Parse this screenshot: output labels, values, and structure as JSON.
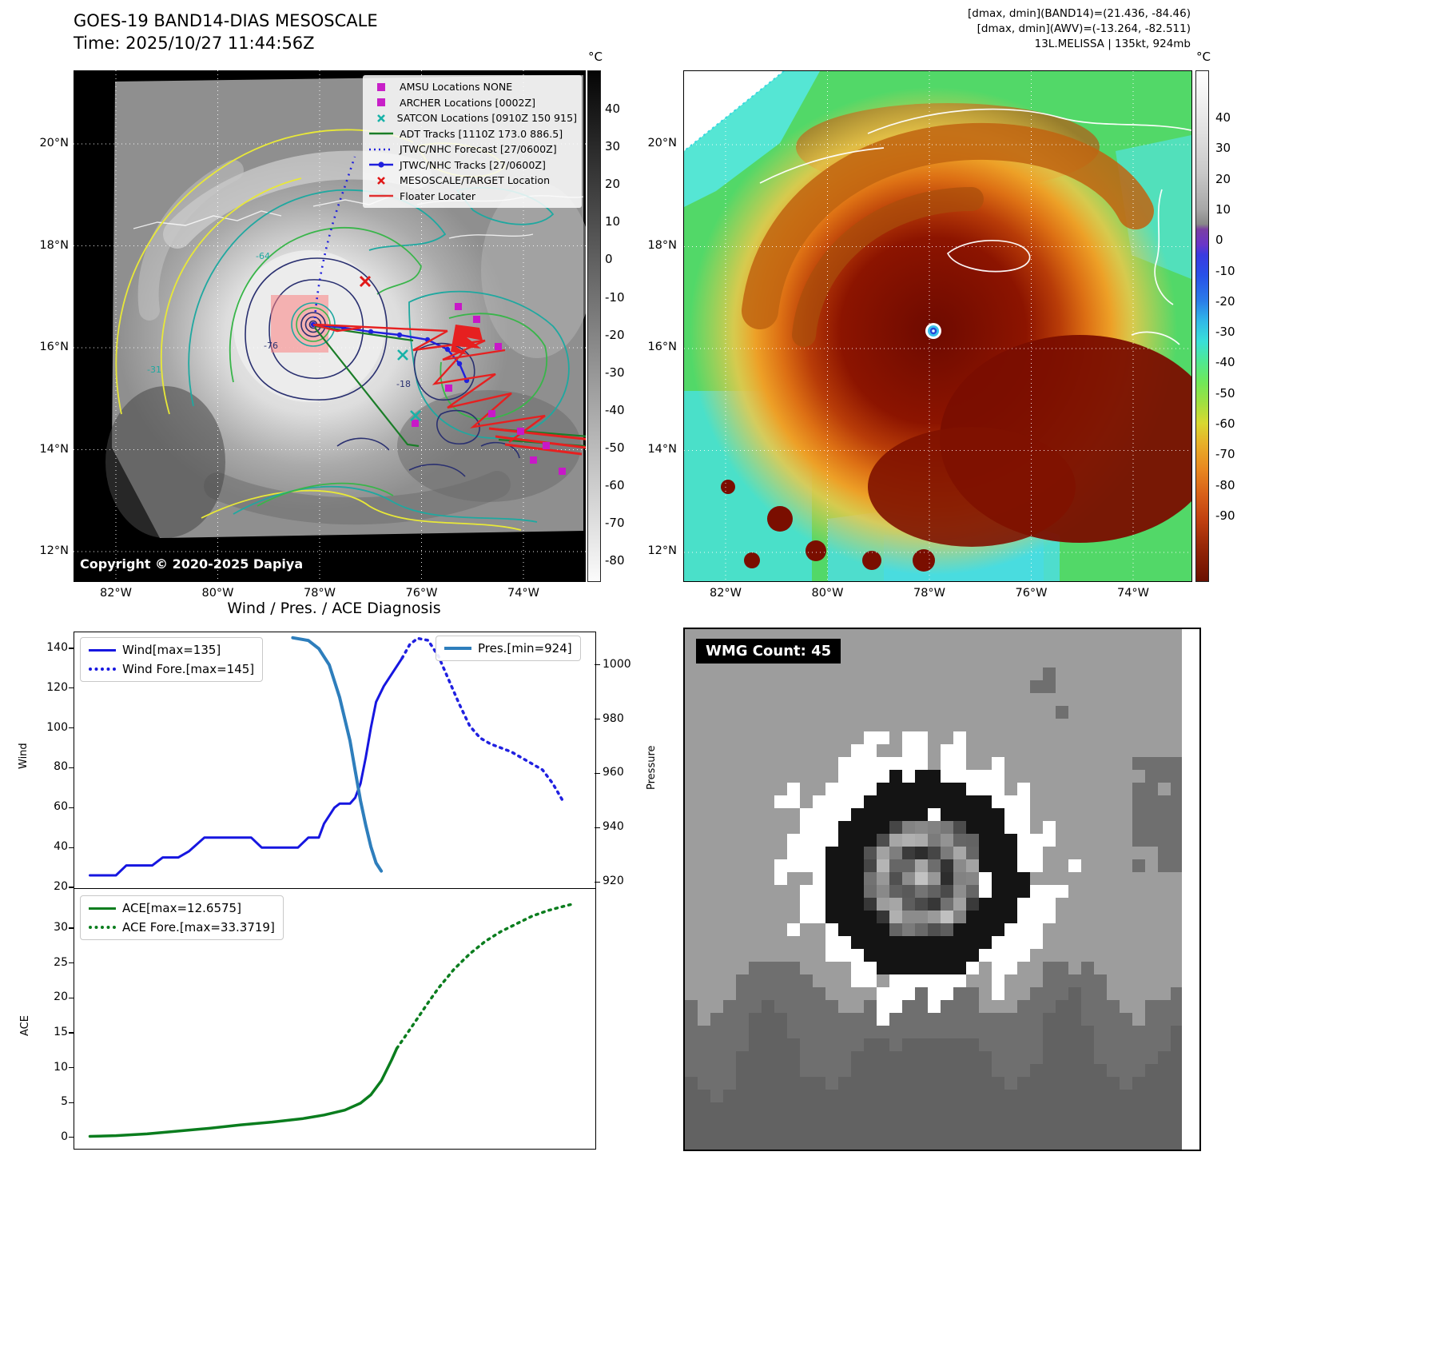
{
  "band14": {
    "title": "GOES-19 BAND14-DIAS MESOSCALE",
    "time_line": "Time: 2025/10/27 11:44:56Z",
    "copyright": "Copyright © 2020-2025 Dapiya",
    "colorbar": {
      "unit": "°C",
      "ticks": [
        "40",
        "30",
        "20",
        "10",
        "0",
        "-10",
        "-20",
        "-30",
        "-40",
        "-50",
        "-60",
        "-70",
        "-80"
      ]
    },
    "lat_ticks": [
      "20°N",
      "18°N",
      "16°N",
      "14°N",
      "12°N"
    ],
    "lon_ticks": [
      "82°W",
      "80°W",
      "78°W",
      "76°W",
      "74°W"
    ],
    "contour_labels": [
      "-31",
      "-64",
      "-76",
      "-18"
    ],
    "legend": [
      {
        "label": "AMSU Locations NONE",
        "marker": "square",
        "color": "#c820c8"
      },
      {
        "label": "ARCHER Locations [0002Z]",
        "marker": "square",
        "color": "#c820c8"
      },
      {
        "label": "SATCON Locations [0910Z 150 915]",
        "marker": "x",
        "color": "#18b2a8"
      },
      {
        "label": "ADT Tracks [1110Z 173.0 886.5]",
        "marker": "line",
        "color": "#1a7d28"
      },
      {
        "label": "JTWC/NHC Forecast [27/0600Z]",
        "marker": "dotted",
        "color": "#2020dd"
      },
      {
        "label": "JTWC/NHC Tracks [27/0600Z]",
        "marker": "line-dot",
        "color": "#2020dd"
      },
      {
        "label": "MESOSCALE/TARGET Location",
        "marker": "x",
        "color": "#e01818"
      },
      {
        "label": "Floater Locater",
        "marker": "line",
        "color": "#e03030"
      }
    ]
  },
  "awv": {
    "header_lines": [
      "[dmax, dmin](BAND14)=(21.436, -84.46)",
      "[dmax, dmin](AWV)=(-13.264, -82.511)",
      "13L.MELISSA | 135kt, 924mb"
    ],
    "colorbar": {
      "unit": "°C",
      "ticks": [
        "40",
        "30",
        "20",
        "10",
        "0",
        "-10",
        "-20",
        "-30",
        "-40",
        "-50",
        "-60",
        "-70",
        "-80",
        "-90"
      ]
    },
    "lat_ticks": [
      "20°N",
      "18°N",
      "16°N",
      "14°N",
      "12°N"
    ],
    "lon_ticks": [
      "82°W",
      "80°W",
      "78°W",
      "76°W",
      "74°W"
    ]
  },
  "diagnosis_title": "Wind / Pres. / ACE Diagnosis",
  "wmg_label": "WMG Count: 45",
  "chart_data": [
    {
      "type": "line",
      "title": "Wind / Pres. / ACE Diagnosis",
      "xlim": [
        0,
        100
      ],
      "grid": false,
      "legend_position": "upper-left and upper-right",
      "left_axis": {
        "label": "Wind",
        "ticks": [
          20,
          40,
          60,
          80,
          100,
          120,
          140
        ],
        "lim": [
          20,
          148
        ]
      },
      "right_axis": {
        "label": "Pressure",
        "ticks": [
          920,
          940,
          960,
          980,
          1000
        ],
        "lim": [
          918,
          1012
        ]
      },
      "series": [
        {
          "name": "Wind[max=135]",
          "axis": "left",
          "style": "solid",
          "color": "#1616e0",
          "width": 3,
          "x": [
            3,
            8,
            10,
            15,
            17,
            20,
            22,
            25,
            27,
            34,
            36,
            43,
            45,
            47,
            48,
            50,
            51,
            53,
            54,
            55,
            56,
            57,
            58,
            59.5,
            61,
            63
          ],
          "y": [
            26,
            26,
            31,
            31,
            35,
            35,
            38,
            45,
            45,
            45,
            40,
            40,
            45,
            45,
            52,
            60,
            62,
            62,
            65,
            72,
            85,
            100,
            113,
            121,
            127,
            135
          ]
        },
        {
          "name": "Wind Fore.[max=145]",
          "axis": "left",
          "style": "dotted",
          "color": "#2020e0",
          "width": 3.5,
          "x": [
            63,
            64.5,
            66,
            68,
            70,
            72,
            74,
            76,
            78,
            80,
            82,
            84,
            86,
            88,
            90,
            92,
            94
          ],
          "y": [
            135,
            142,
            145,
            144,
            136,
            124,
            112,
            101,
            95,
            92,
            90,
            88,
            85,
            82,
            79,
            72,
            63
          ]
        },
        {
          "name": "Pres.[min=924]",
          "axis": "right",
          "style": "solid",
          "color": "#2e7ebc",
          "width": 4,
          "x": [
            42,
            45,
            47,
            49,
            51,
            53,
            54,
            55,
            56,
            57,
            58,
            59
          ],
          "y": [
            1010,
            1009,
            1006,
            1000,
            988,
            972,
            961,
            950,
            941,
            933,
            927,
            924
          ]
        }
      ]
    },
    {
      "type": "line",
      "xlim": [
        0,
        100
      ],
      "grid": false,
      "legend_position": "upper-left",
      "left_axis": {
        "label": "ACE",
        "ticks": [
          0,
          5,
          10,
          15,
          20,
          25,
          30
        ],
        "lim": [
          -1.5,
          35.5
        ]
      },
      "series": [
        {
          "name": "ACE[max=12.6575]",
          "style": "solid",
          "color": "#0a7d1e",
          "width": 3.5,
          "x": [
            3,
            8,
            14,
            20,
            26,
            32,
            38,
            44,
            48,
            52,
            55,
            57,
            59,
            60,
            61,
            62
          ],
          "y": [
            0.05,
            0.15,
            0.4,
            0.8,
            1.2,
            1.7,
            2.1,
            2.6,
            3.1,
            3.8,
            4.8,
            6,
            8,
            9.5,
            11,
            12.66
          ]
        },
        {
          "name": "ACE Fore.[max=33.3719]",
          "style": "dotted",
          "color": "#0a7d1e",
          "width": 3.5,
          "x": [
            62,
            64,
            66,
            68,
            70,
            73,
            76,
            79,
            82,
            85,
            88,
            91,
            94,
            96
          ],
          "y": [
            12.66,
            14.8,
            17,
            19.2,
            21.3,
            24,
            26.2,
            28,
            29.4,
            30.5,
            31.6,
            32.4,
            33,
            33.37
          ]
        }
      ]
    }
  ]
}
